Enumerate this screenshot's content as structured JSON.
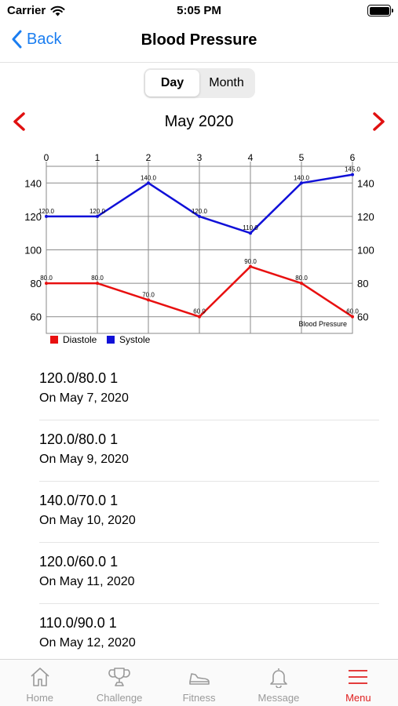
{
  "status_bar": {
    "carrier": "Carrier",
    "time": "5:05 PM"
  },
  "nav": {
    "back_label": "Back",
    "title": "Blood Pressure"
  },
  "segments": [
    {
      "label": "Day",
      "active": true
    },
    {
      "label": "Month",
      "active": false
    }
  ],
  "month": "May 2020",
  "chart_data": {
    "type": "line",
    "x": [
      0,
      1,
      2,
      3,
      4,
      5,
      6
    ],
    "series": [
      {
        "name": "Diastole",
        "color": "#e81010",
        "values": [
          80.0,
          80.0,
          70.0,
          60.0,
          90.0,
          80.0,
          60.0
        ]
      },
      {
        "name": "Systole",
        "color": "#1010d8",
        "values": [
          120.0,
          120.0,
          140.0,
          120.0,
          110.0,
          140.0,
          145.0
        ]
      }
    ],
    "x_ticks": [
      "0",
      "1",
      "2",
      "3",
      "4",
      "5",
      "6"
    ],
    "y_ticks": [
      "60",
      "80",
      "100",
      "120",
      "140"
    ],
    "xlim": [
      0,
      6
    ],
    "ylim": [
      50,
      150
    ],
    "description": "Blood Pressure",
    "grid": true,
    "legend": "bottom-left"
  },
  "readings": [
    {
      "value": "120.0/80.0 1",
      "date": "On May 7, 2020"
    },
    {
      "value": "120.0/80.0 1",
      "date": "On May 9, 2020"
    },
    {
      "value": "140.0/70.0 1",
      "date": "On May 10, 2020"
    },
    {
      "value": "120.0/60.0 1",
      "date": "On May 11, 2020"
    },
    {
      "value": "110.0/90.0 1",
      "date": "On May 12, 2020"
    }
  ],
  "tabs": [
    {
      "label": "Home",
      "icon": "home-icon"
    },
    {
      "label": "Challenge",
      "icon": "trophy-icon"
    },
    {
      "label": "Fitness",
      "icon": "sneaker-icon"
    },
    {
      "label": "Message",
      "icon": "bell-icon"
    },
    {
      "label": "Menu",
      "icon": "menu-icon",
      "active": true
    }
  ],
  "colors": {
    "accent": "#1a7df0",
    "active_tab": "#e02020",
    "arrow": "#e01010"
  }
}
